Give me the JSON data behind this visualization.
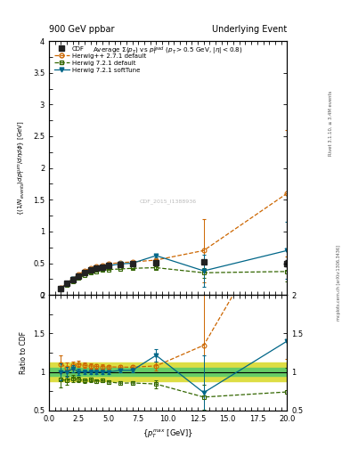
{
  "title_left": "900 GeV ppbar",
  "title_right": "Underlying Event",
  "plot_title": "Average Σ(p_{T}) vs p_{T}^{lead} (p_{T} > 0.5 GeV, |\\eta| < 0.8)",
  "ylabel_main": "{(1/N_{events}) dp_{T}^{sum}/d\\eta d\\phi} [GeV]",
  "ylabel_ratio": "Ratio to CDF",
  "xlabel": "{p_{T}^{max} [GeV]}",
  "right_label": "Rivet 3.1.10, ≥ 3.4M events",
  "mcplots_label": "mcplots.cern.ch [arXiv:1306.3436]",
  "watermark": "CDF_2015_I1388936",
  "ylim_main": [
    0,
    4
  ],
  "ylim_ratio": [
    0.5,
    2
  ],
  "xlim": [
    0,
    20
  ],
  "cdf_x": [
    1.0,
    1.5,
    2.0,
    2.5,
    3.0,
    3.5,
    4.0,
    4.5,
    5.0,
    6.0,
    7.0,
    9.0,
    13.0,
    20.0
  ],
  "cdf_y": [
    0.1,
    0.18,
    0.24,
    0.3,
    0.35,
    0.39,
    0.42,
    0.44,
    0.46,
    0.48,
    0.49,
    0.51,
    0.52,
    0.5
  ],
  "cdf_yerr": [
    0.01,
    0.01,
    0.01,
    0.01,
    0.01,
    0.01,
    0.01,
    0.01,
    0.01,
    0.01,
    0.01,
    0.02,
    0.03,
    0.05
  ],
  "hwpp_x": [
    1.0,
    1.5,
    2.0,
    2.5,
    3.0,
    3.5,
    4.0,
    4.5,
    5.0,
    6.0,
    7.0,
    9.0,
    13.0,
    20.0
  ],
  "hwpp_y": [
    0.11,
    0.19,
    0.26,
    0.33,
    0.38,
    0.42,
    0.45,
    0.47,
    0.49,
    0.51,
    0.52,
    0.55,
    0.7,
    1.6
  ],
  "hwpp_yerr": [
    0.005,
    0.005,
    0.005,
    0.005,
    0.005,
    0.005,
    0.005,
    0.005,
    0.005,
    0.005,
    0.01,
    0.02,
    0.5,
    1.0
  ],
  "hw721_x": [
    1.0,
    1.5,
    2.0,
    2.5,
    3.0,
    3.5,
    4.0,
    4.5,
    5.0,
    6.0,
    7.0,
    9.0,
    13.0,
    20.0
  ],
  "hw721_y": [
    0.09,
    0.16,
    0.22,
    0.27,
    0.31,
    0.35,
    0.37,
    0.39,
    0.4,
    0.41,
    0.42,
    0.43,
    0.35,
    0.37
  ],
  "hw721_yerr": [
    0.005,
    0.005,
    0.005,
    0.005,
    0.005,
    0.005,
    0.005,
    0.005,
    0.005,
    0.005,
    0.01,
    0.02,
    0.08,
    0.15
  ],
  "hwst_x": [
    1.0,
    1.5,
    2.0,
    2.5,
    3.0,
    3.5,
    4.0,
    4.5,
    5.0,
    6.0,
    7.0,
    9.0,
    13.0,
    20.0
  ],
  "hwst_y": [
    0.1,
    0.18,
    0.25,
    0.3,
    0.35,
    0.39,
    0.42,
    0.44,
    0.46,
    0.49,
    0.5,
    0.62,
    0.38,
    0.7
  ],
  "hwst_yerr": [
    0.005,
    0.005,
    0.005,
    0.005,
    0.005,
    0.005,
    0.005,
    0.005,
    0.005,
    0.005,
    0.01,
    0.03,
    0.25,
    0.45
  ],
  "cdf_band_inner": 0.05,
  "cdf_band_outer": 0.12,
  "color_cdf": "#222222",
  "color_hwpp": "#cc6600",
  "color_hw721": "#336600",
  "color_hwst": "#006688",
  "color_band_inner": "#66cc66",
  "color_band_outer": "#dddd44"
}
